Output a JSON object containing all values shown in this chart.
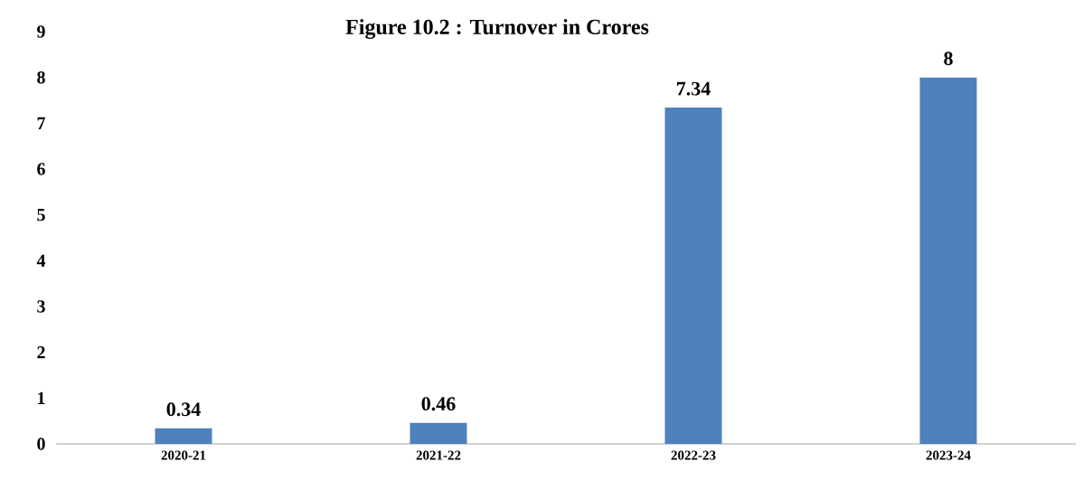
{
  "chart_data": {
    "type": "bar",
    "title": "Figure 10.2 : Turnover in Crores",
    "categories": [
      "2020-21",
      "2021-22",
      "2022-23",
      "2023-24"
    ],
    "values": [
      0.34,
      0.46,
      7.34,
      8
    ],
    "value_labels": [
      "0.34",
      "0.46",
      "7.34",
      "8"
    ],
    "color": "#4f81bd",
    "ylim": [
      0,
      9
    ],
    "yticks": [
      0,
      1,
      2,
      3,
      4,
      5,
      6,
      7,
      8,
      9
    ],
    "grid": false
  }
}
